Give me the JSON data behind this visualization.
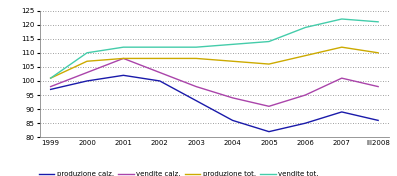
{
  "x_labels": [
    "1999",
    "2000",
    "2001",
    "2002",
    "2003",
    "2004",
    "2005",
    "2006",
    "2007",
    "III2008"
  ],
  "produzione_calz": [
    97,
    100,
    102,
    100,
    93,
    86,
    82,
    85,
    89,
    86
  ],
  "vendite_calz": [
    98,
    103,
    108,
    103,
    98,
    94,
    91,
    95,
    101,
    98
  ],
  "produzione_tot": [
    101,
    107,
    108,
    108,
    108,
    107,
    106,
    109,
    112,
    110
  ],
  "vendite_tot": [
    101,
    110,
    112,
    112,
    112,
    113,
    114,
    119,
    122,
    121
  ],
  "colors": {
    "produzione_calz": "#1a1aaa",
    "vendite_calz": "#aa44aa",
    "produzione_tot": "#ccaa00",
    "vendite_tot": "#44ccaa"
  },
  "ylim": [
    80,
    125
  ],
  "yticks": [
    80,
    85,
    90,
    95,
    100,
    105,
    110,
    115,
    120,
    125
  ],
  "legend_labels": [
    "produzione calz.",
    "vendite calz.",
    "produzione tot.",
    "vendite tot."
  ],
  "plot_bg": "#ffffff"
}
